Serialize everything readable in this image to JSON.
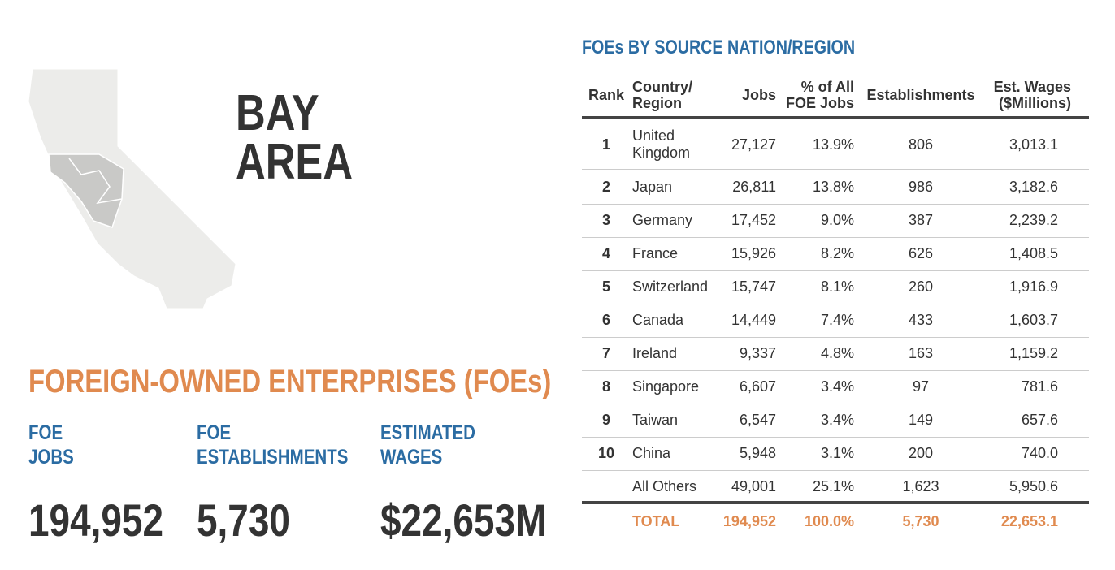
{
  "region_title": [
    "BAY",
    "AREA"
  ],
  "foe_heading": "FOREIGN-OWNED ENTERPRISES (FOEs)",
  "stats": [
    {
      "label": [
        "FOE",
        "JOBS"
      ],
      "value": "194,952"
    },
    {
      "label": [
        "FOE",
        "ESTABLISHMENTS"
      ],
      "value": "5,730"
    },
    {
      "label": [
        "ESTIMATED",
        "WAGES"
      ],
      "value": "$22,653M"
    }
  ],
  "table": {
    "title": "FOEs BY SOURCE NATION/REGION",
    "columns": [
      "Rank",
      "Country/ Region",
      "Jobs",
      "% of All FOE Jobs",
      "Establishments",
      "Est. Wages ($Millions)"
    ],
    "rows": [
      [
        "1",
        "United Kingdom",
        "27,127",
        "13.9%",
        "806",
        "3,013.1"
      ],
      [
        "2",
        "Japan",
        "26,811",
        "13.8%",
        "986",
        "3,182.6"
      ],
      [
        "3",
        "Germany",
        "17,452",
        "9.0%",
        "387",
        "2,239.2"
      ],
      [
        "4",
        "France",
        "15,926",
        "8.2%",
        "626",
        "1,408.5"
      ],
      [
        "5",
        "Switzerland",
        "15,747",
        "8.1%",
        "260",
        "1,916.9"
      ],
      [
        "6",
        "Canada",
        "14,449",
        "7.4%",
        "433",
        "1,603.7"
      ],
      [
        "7",
        "Ireland",
        "9,337",
        "4.8%",
        "163",
        "1,159.2"
      ],
      [
        "8",
        "Singapore",
        "6,607",
        "3.4%",
        "97",
        "781.6"
      ],
      [
        "9",
        "Taiwan",
        "6,547",
        "3.4%",
        "149",
        "657.6"
      ],
      [
        "10",
        "China",
        "5,948",
        "3.1%",
        "200",
        "740.0"
      ],
      [
        null,
        "All Others",
        "49,001",
        "25.1%",
        "1,623",
        "5,950.6"
      ]
    ],
    "total": [
      null,
      "TOTAL",
      "194,952",
      "100.0%",
      "5,730",
      "22,653.1"
    ]
  }
}
